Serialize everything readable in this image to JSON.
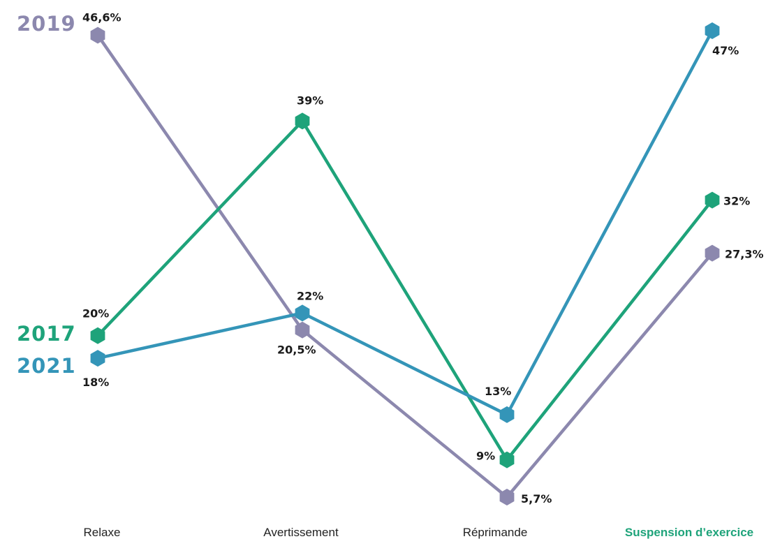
{
  "chart_data": {
    "type": "line",
    "categories": [
      "Relaxe",
      "Avertissement",
      "Réprimande",
      "Suspension d’exercice"
    ],
    "highlight_category_color": "#1ea37a",
    "series": [
      {
        "name": "2019",
        "color": "#8c88ae",
        "values": [
          46.6,
          20.5,
          5.7,
          27.3
        ],
        "labels": [
          "46,6%",
          "20,5%",
          "5,7%",
          "27,3%"
        ]
      },
      {
        "name": "2017",
        "color": "#1ea37a",
        "values": [
          20,
          39,
          9,
          32
        ],
        "labels": [
          "20%",
          "39%",
          "9%",
          "32%"
        ]
      },
      {
        "name": "2021",
        "color": "#3495b8",
        "values": [
          18,
          22,
          13,
          47
        ],
        "labels": [
          "18%",
          "22%",
          "13%",
          "47%"
        ]
      }
    ],
    "ylim": [
      5.7,
      47
    ],
    "grid": false,
    "legend": "left"
  }
}
